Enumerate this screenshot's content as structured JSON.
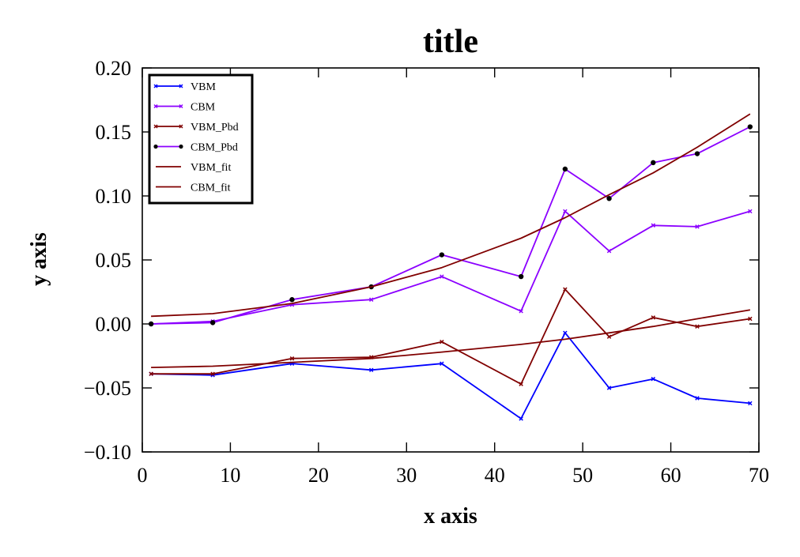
{
  "chart_data": {
    "type": "line",
    "title": "title",
    "xlabel": "x axis",
    "ylabel": "y axis",
    "xlim": [
      0,
      70
    ],
    "ylim": [
      -0.1,
      0.2
    ],
    "xticks": [
      0,
      10,
      20,
      30,
      40,
      50,
      60,
      70
    ],
    "yticks": [
      -0.1,
      -0.05,
      0.0,
      0.05,
      0.1,
      0.15,
      0.2
    ],
    "xtick_labels": [
      "0",
      "10",
      "20",
      "30",
      "40",
      "50",
      "60",
      "70"
    ],
    "ytick_labels": [
      "−0.10",
      "−0.05",
      "0.00",
      "0.05",
      "0.10",
      "0.15",
      "0.20"
    ],
    "grid": false,
    "legend_position": "top-left",
    "x": [
      1,
      8,
      17,
      26,
      34,
      43,
      48,
      53,
      58,
      63,
      69
    ],
    "series": [
      {
        "name": "VBM",
        "color": "#0000ff",
        "marker": "x",
        "values": [
          -0.039,
          -0.04,
          -0.031,
          -0.036,
          -0.031,
          -0.074,
          -0.007,
          -0.05,
          -0.043,
          -0.058,
          -0.062
        ]
      },
      {
        "name": "CBM",
        "color": "#8b00ff",
        "marker": "x",
        "values": [
          0.0,
          0.002,
          0.015,
          0.019,
          0.037,
          0.01,
          0.088,
          0.057,
          0.077,
          0.076,
          0.088
        ]
      },
      {
        "name": "VBM_Pbd",
        "color": "#800000",
        "marker": "x",
        "values": [
          -0.039,
          -0.039,
          -0.027,
          -0.026,
          -0.014,
          -0.047,
          0.027,
          -0.01,
          0.005,
          -0.002,
          0.004
        ]
      },
      {
        "name": "CBM_Pbd",
        "color": "#8b00ff",
        "marker": "dot",
        "values": [
          0.0,
          0.001,
          0.019,
          0.029,
          0.054,
          0.037,
          0.121,
          0.098,
          0.126,
          0.133,
          0.154
        ]
      },
      {
        "name": "VBM_fit",
        "color": "#800000",
        "marker": "none",
        "values": [
          -0.034,
          -0.033,
          -0.03,
          -0.027,
          -0.022,
          -0.016,
          -0.012,
          -0.007,
          -0.002,
          0.004,
          0.011
        ]
      },
      {
        "name": "CBM_fit",
        "color": "#800000",
        "marker": "none",
        "values": [
          0.006,
          0.008,
          0.016,
          0.029,
          0.044,
          0.067,
          0.083,
          0.101,
          0.118,
          0.138,
          0.164
        ]
      }
    ]
  }
}
